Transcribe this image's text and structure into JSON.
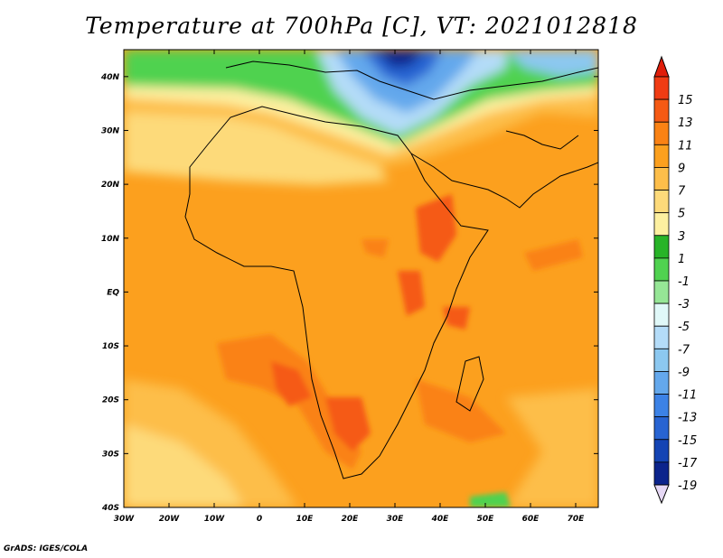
{
  "title": "Temperature at 700hPa [C], VT: 2021012818",
  "credit": "GrADS: IGES/COLA",
  "map": {
    "lon_range": [
      -30,
      75
    ],
    "lat_range": [
      -40,
      45
    ],
    "lon_ticks": [
      {
        "lon": -30,
        "label": "30W"
      },
      {
        "lon": -20,
        "label": "20W"
      },
      {
        "lon": -10,
        "label": "10W"
      },
      {
        "lon": 0,
        "label": "0"
      },
      {
        "lon": 10,
        "label": "10E"
      },
      {
        "lon": 20,
        "label": "20E"
      },
      {
        "lon": 30,
        "label": "30E"
      },
      {
        "lon": 40,
        "label": "40E"
      },
      {
        "lon": 50,
        "label": "50E"
      },
      {
        "lon": 60,
        "label": "60E"
      },
      {
        "lon": 70,
        "label": "70E"
      }
    ],
    "lat_ticks": [
      {
        "lat": 40,
        "label": "40N"
      },
      {
        "lat": 30,
        "label": "30N"
      },
      {
        "lat": 20,
        "label": "20N"
      },
      {
        "lat": 10,
        "label": "10N"
      },
      {
        "lat": 0,
        "label": "EQ"
      },
      {
        "lat": -10,
        "label": "10S"
      },
      {
        "lat": -20,
        "label": "20S"
      },
      {
        "lat": -30,
        "label": "30S"
      },
      {
        "lat": -40,
        "label": "40S"
      }
    ]
  },
  "colorbar": {
    "levels": [
      {
        "label": "15",
        "color": "#f03c14"
      },
      {
        "label": "13",
        "color": "#f55a14"
      },
      {
        "label": "11",
        "color": "#fa8214"
      },
      {
        "label": "9",
        "color": "#fca01e"
      },
      {
        "label": "7",
        "color": "#fdbe4a"
      },
      {
        "label": "5",
        "color": "#fdda7a"
      },
      {
        "label": "3",
        "color": "#fdf0a0"
      },
      {
        "label": "1",
        "color": "#28b428"
      },
      {
        "label": "-1",
        "color": "#50d250"
      },
      {
        "label": "-3",
        "color": "#96e696"
      },
      {
        "label": "-5",
        "color": "#e0f8f8"
      },
      {
        "label": "-7",
        "color": "#b4dcf8"
      },
      {
        "label": "-9",
        "color": "#8cc8f0"
      },
      {
        "label": "-11",
        "color": "#64a8ec"
      },
      {
        "label": "-13",
        "color": "#3c82e6"
      },
      {
        "label": "-15",
        "color": "#2864d2"
      },
      {
        "label": "-17",
        "color": "#1444b4"
      },
      {
        "label": "-19",
        "color": "#0c248c"
      }
    ],
    "top_color": "#e01e0a",
    "bottom_color": "#e6d8f5"
  }
}
